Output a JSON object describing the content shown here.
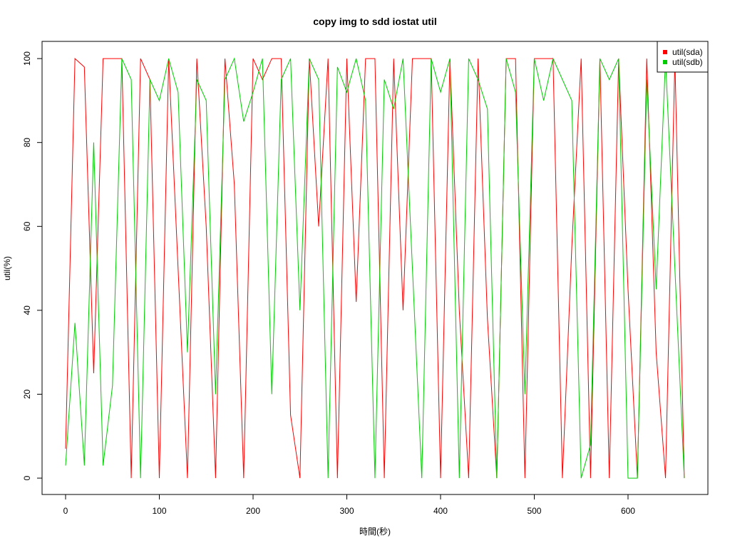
{
  "chart_data": {
    "type": "line",
    "title": "copy img to sdd iostat util",
    "x_label": "時間(秒)",
    "y_label": "util(%)",
    "x": [
      0,
      10,
      20,
      30,
      40,
      50,
      60,
      70,
      80,
      90,
      100,
      110,
      120,
      130,
      140,
      150,
      160,
      170,
      180,
      190,
      200,
      210,
      220,
      230,
      240,
      250,
      260,
      270,
      280,
      290,
      300,
      310,
      320,
      330,
      340,
      350,
      360,
      370,
      380,
      390,
      400,
      410,
      420,
      430,
      440,
      450,
      460,
      470,
      480,
      490,
      500,
      510,
      520,
      530,
      540,
      550,
      560,
      570,
      580,
      590,
      600,
      610,
      620,
      630,
      640,
      650,
      660
    ],
    "series": [
      {
        "name": "util(sda)",
        "color": "#ff0000",
        "values": [
          7,
          100,
          98,
          25,
          100,
          100,
          100,
          0,
          100,
          95,
          0,
          100,
          50,
          0,
          100,
          60,
          0,
          100,
          70,
          0,
          100,
          95,
          100,
          100,
          15,
          0,
          100,
          60,
          100,
          0,
          100,
          42,
          100,
          100,
          0,
          100,
          40,
          100,
          100,
          100,
          0,
          100,
          40,
          0,
          100,
          38,
          0,
          100,
          100,
          0,
          100,
          100,
          100,
          0,
          55,
          100,
          0,
          100,
          0,
          100,
          45,
          0,
          100,
          30,
          0,
          100,
          0
        ]
      },
      {
        "name": "util(sdb)",
        "color": "#00cc00",
        "values": [
          3,
          37,
          3,
          80,
          3,
          22,
          100,
          95,
          0,
          95,
          90,
          100,
          92,
          30,
          95,
          90,
          20,
          95,
          100,
          85,
          92,
          100,
          20,
          95,
          100,
          40,
          100,
          95,
          0,
          98,
          92,
          100,
          90,
          0,
          95,
          88,
          100,
          50,
          0,
          100,
          92,
          100,
          0,
          100,
          95,
          88,
          0,
          100,
          92,
          20,
          100,
          90,
          100,
          95,
          90,
          0,
          8,
          100,
          95,
          100,
          0,
          0,
          95,
          45,
          100,
          50,
          0
        ]
      }
    ],
    "xlim": [
      -25.1,
      685.2
    ],
    "ylim": [
      -3.9,
      104.1
    ],
    "xticks": [
      0,
      100,
      200,
      300,
      400,
      500,
      600
    ],
    "yticks": [
      0,
      20,
      40,
      60,
      80,
      100
    ],
    "legend": "top-right"
  }
}
